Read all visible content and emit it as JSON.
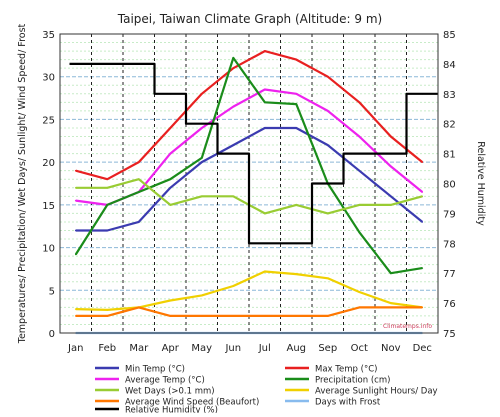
{
  "chart_data": {
    "type": "line",
    "title": "Taipei, Taiwan Climate Graph (Altitude: 9 m)",
    "ylabel_left": "Temperatures/ Precipitation/ Wet Days/ Sunlight/ Wind Speed/ Frost",
    "ylabel_right": "Relative Humidity",
    "ylim_left": [
      0,
      35
    ],
    "ylim_right": [
      75,
      85
    ],
    "yticks_left": [
      "0",
      "5",
      "10",
      "15",
      "20",
      "25",
      "30",
      "35"
    ],
    "yticks_right": [
      "75",
      "76",
      "77",
      "78",
      "79",
      "80",
      "81",
      "82",
      "83",
      "84",
      "85"
    ],
    "categories": [
      "Jan",
      "Feb",
      "Mar",
      "Apr",
      "May",
      "Jun",
      "Jul",
      "Aug",
      "Sep",
      "Oct",
      "Nov",
      "Dec"
    ],
    "watermark": "Climatemps.info",
    "grid": true,
    "series": [
      {
        "name": "Min Temp (°C)",
        "color": "#3b3bb0",
        "axis": "left",
        "step": false,
        "values": [
          12,
          12,
          13,
          17,
          20,
          22,
          24,
          24,
          22,
          19,
          16,
          13
        ]
      },
      {
        "name": "Max Temp (°C)",
        "color": "#e82020",
        "axis": "left",
        "step": false,
        "values": [
          19,
          18,
          20,
          24,
          28,
          31,
          33,
          32,
          30,
          27,
          23,
          20
        ]
      },
      {
        "name": "Average Temp (°C)",
        "color": "#ee22ee",
        "axis": "left",
        "step": false,
        "values": [
          15.5,
          15,
          16.5,
          21,
          24,
          26.5,
          28.5,
          28,
          26,
          23,
          19.5,
          16.5
        ]
      },
      {
        "name": "Precipitation (cm)",
        "color": "#1a8c1a",
        "axis": "left",
        "step": false,
        "values": [
          9.2,
          15,
          16.5,
          18,
          20.5,
          32.2,
          27,
          26.8,
          17.5,
          11.8,
          7,
          7.6
        ]
      },
      {
        "name": "Wet Days (>0.1 mm)",
        "color": "#99cc33",
        "axis": "left",
        "step": false,
        "values": [
          17,
          17,
          18,
          15,
          16,
          16,
          14,
          15,
          14,
          15,
          15,
          16
        ]
      },
      {
        "name": "Average Sunlight Hours/ Day",
        "color": "#f0d000",
        "axis": "left",
        "step": false,
        "values": [
          2.8,
          2.7,
          3.0,
          3.8,
          4.4,
          5.5,
          7.2,
          6.9,
          6.4,
          4.8,
          3.5,
          3.0
        ]
      },
      {
        "name": "Average Wind Speed (Beaufort)",
        "color": "#ff7700",
        "axis": "left",
        "step": false,
        "values": [
          2,
          2,
          3,
          2,
          2,
          2,
          2,
          2,
          2,
          3,
          3,
          3
        ]
      },
      {
        "name": "Days with Frost",
        "color": "#88bbee",
        "axis": "left",
        "step": false,
        "values": [
          0,
          0,
          0,
          0,
          0,
          0,
          0,
          0,
          0,
          0,
          0,
          0
        ]
      },
      {
        "name": "Relative Humidity (%)",
        "color": "#000000",
        "axis": "right",
        "step": true,
        "values": [
          84,
          84,
          84,
          83,
          82,
          81,
          78,
          78,
          80,
          81,
          81,
          83
        ]
      }
    ]
  }
}
